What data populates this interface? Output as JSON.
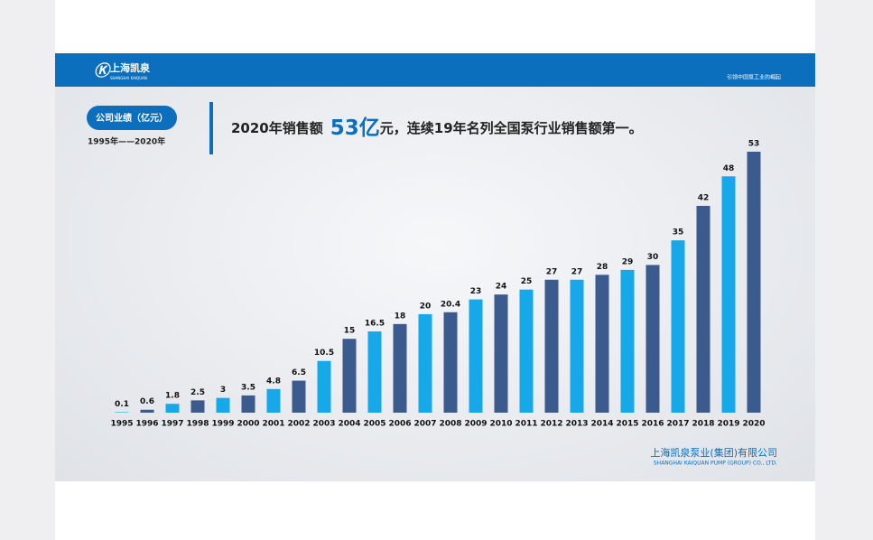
{
  "header": {
    "logo_text": "上海凯泉",
    "logo_sub": "SHANGHAI KAIQUAN",
    "slogan": "引领中国泵工业的崛起"
  },
  "badge": {
    "label": "公司业绩（亿元）",
    "period": "1995年——2020年"
  },
  "headline": {
    "before": "2020年销售额",
    "highlight": "53亿",
    "after": "元，连续19年名列全国泵行业销售额第一。"
  },
  "footer": {
    "company": "上海凯泉泵业(集团)有限公司",
    "company_en": "SHANGHAI KAIQUAN PUMP (GROUP) CO., LTD."
  },
  "chart_data": {
    "type": "bar",
    "categories": [
      "1995",
      "1996",
      "1997",
      "1998",
      "1999",
      "2000",
      "2001",
      "2002",
      "2003",
      "2004",
      "2005",
      "2006",
      "2007",
      "2008",
      "2009",
      "2010",
      "2011",
      "2012",
      "2013",
      "2014",
      "2015",
      "2016",
      "2017",
      "2018",
      "2019",
      "2020"
    ],
    "values": [
      0.1,
      0.6,
      1.8,
      2.5,
      3,
      3.5,
      4.8,
      6.5,
      10.5,
      15,
      16.5,
      18,
      20,
      20.4,
      23,
      24,
      25,
      27,
      27,
      28,
      29,
      30,
      35,
      42,
      48,
      53
    ],
    "colors": [
      "#17a8ea",
      "#3b5b8f"
    ]
  }
}
